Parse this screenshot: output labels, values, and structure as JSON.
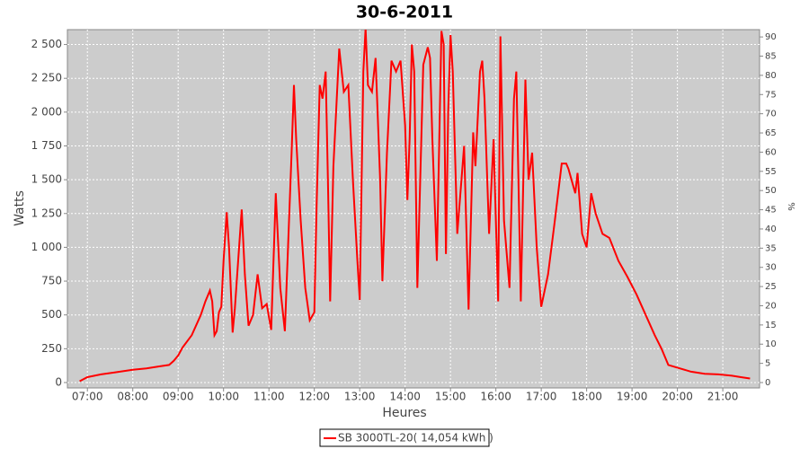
{
  "chart_data": {
    "type": "line",
    "title": "30-6-2011",
    "xlabel": "Heures",
    "ylabel": "Watts",
    "y2label": "%",
    "xlim": [
      6.56,
      21.81
    ],
    "ylim": [
      -40,
      2610
    ],
    "y2lim": [
      -1.4,
      91.9
    ],
    "grid": true,
    "legend": "bottom",
    "xticks": [
      {
        "value": 7,
        "label": "07:00"
      },
      {
        "value": 8,
        "label": "08:00"
      },
      {
        "value": 9,
        "label": "09:00"
      },
      {
        "value": 10,
        "label": "10:00"
      },
      {
        "value": 11,
        "label": "11:00"
      },
      {
        "value": 12,
        "label": "12:00"
      },
      {
        "value": 13,
        "label": "13:00"
      },
      {
        "value": 14,
        "label": "14:00"
      },
      {
        "value": 15,
        "label": "15:00"
      },
      {
        "value": 16,
        "label": "16:00"
      },
      {
        "value": 17,
        "label": "17:00"
      },
      {
        "value": 18,
        "label": "18:00"
      },
      {
        "value": 19,
        "label": "19:00"
      },
      {
        "value": 20,
        "label": "20:00"
      },
      {
        "value": 21,
        "label": "21:00"
      }
    ],
    "yticks": [
      0,
      250,
      500,
      750,
      {
        "value": 1000,
        "label": "1 000"
      },
      {
        "value": 1250,
        "label": "1 250"
      },
      {
        "value": 1500,
        "label": "1 500"
      },
      {
        "value": 1750,
        "label": "1 750"
      },
      {
        "value": 2000,
        "label": "2 000"
      },
      {
        "value": 2250,
        "label": "2 250"
      },
      {
        "value": 2500,
        "label": "2 500"
      }
    ],
    "y2ticks": [
      0,
      5,
      10,
      15,
      20,
      25,
      30,
      35,
      40,
      45,
      50,
      55,
      60,
      65,
      70,
      75,
      80,
      85,
      90
    ],
    "x": [
      6.83,
      7.0,
      7.3,
      7.6,
      8.0,
      8.3,
      8.6,
      8.8,
      8.9,
      9.0,
      9.1,
      9.3,
      9.5,
      9.6,
      9.7,
      9.75,
      9.8,
      9.85,
      9.9,
      9.95,
      10.0,
      10.07,
      10.12,
      10.2,
      10.25,
      10.4,
      10.47,
      10.55,
      10.65,
      10.75,
      10.85,
      10.95,
      11.05,
      11.15,
      11.25,
      11.35,
      11.5,
      11.55,
      11.6,
      11.7,
      11.8,
      11.9,
      12.0,
      12.05,
      12.12,
      12.18,
      12.25,
      12.3,
      12.35,
      12.42,
      12.55,
      12.65,
      12.75,
      12.85,
      12.95,
      13.0,
      13.08,
      13.13,
      13.18,
      13.27,
      13.35,
      13.45,
      13.5,
      13.6,
      13.7,
      13.8,
      13.9,
      14.0,
      14.05,
      14.1,
      14.15,
      14.2,
      14.27,
      14.4,
      14.5,
      14.55,
      14.6,
      14.7,
      14.8,
      14.85,
      14.9,
      14.95,
      15.0,
      15.05,
      15.15,
      15.3,
      15.4,
      15.5,
      15.55,
      15.65,
      15.7,
      15.75,
      15.85,
      15.95,
      16.05,
      16.1,
      16.18,
      16.3,
      16.4,
      16.45,
      16.55,
      16.65,
      16.72,
      16.8,
      16.9,
      17.0,
      17.15,
      17.3,
      17.45,
      17.55,
      17.6,
      17.75,
      17.8,
      17.9,
      18.0,
      18.1,
      18.2,
      18.35,
      18.5,
      18.7,
      18.9,
      19.1,
      19.3,
      19.5,
      19.65,
      19.8,
      20.0,
      20.3,
      20.6,
      20.9,
      21.2,
      21.4,
      21.6
    ],
    "series": [
      {
        "name": "SB 3000TL-20( 14,054 kWh )",
        "color": "#ff0000",
        "values": [
          10,
          40,
          60,
          75,
          95,
          105,
          120,
          130,
          160,
          200,
          260,
          350,
          500,
          600,
          680,
          600,
          350,
          380,
          520,
          560,
          900,
          1260,
          1000,
          370,
          550,
          1280,
          800,
          420,
          500,
          800,
          550,
          580,
          390,
          1400,
          700,
          380,
          1700,
          2200,
          1800,
          1200,
          700,
          460,
          520,
          1300,
          2200,
          2100,
          2300,
          1500,
          600,
          1600,
          2470,
          2150,
          2200,
          1500,
          900,
          610,
          2300,
          2620,
          2200,
          2150,
          2400,
          1500,
          750,
          1700,
          2380,
          2300,
          2380,
          1900,
          1350,
          1800,
          2500,
          2300,
          700,
          2350,
          2480,
          2400,
          1800,
          900,
          2600,
          2500,
          950,
          2000,
          2570,
          2300,
          1100,
          1750,
          540,
          1850,
          1600,
          2300,
          2380,
          2100,
          1100,
          1800,
          600,
          2560,
          1200,
          700,
          2100,
          2300,
          600,
          2240,
          1500,
          1700,
          1000,
          560,
          800,
          1200,
          1620,
          1620,
          1580,
          1400,
          1550,
          1100,
          1000,
          1400,
          1250,
          1100,
          1070,
          900,
          780,
          650,
          500,
          350,
          250,
          130,
          110,
          80,
          65,
          60,
          50,
          40,
          30
        ]
      }
    ]
  }
}
